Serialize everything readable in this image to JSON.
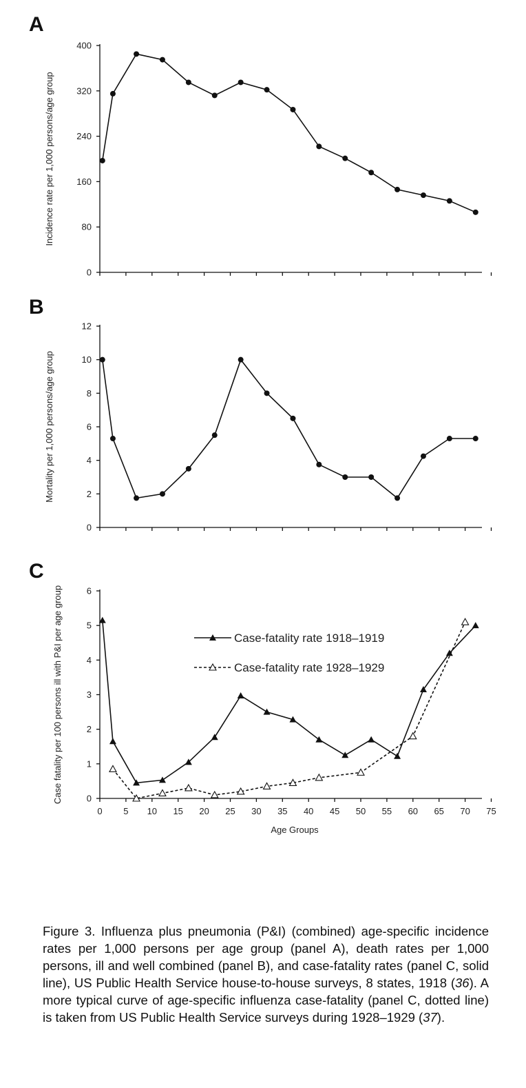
{
  "chart_data": [
    {
      "panel": "A",
      "type": "line",
      "ylabel": "Incidence rate per 1,000 persons/age group",
      "xlabel": "",
      "ylim": [
        0,
        400
      ],
      "yticks": [
        "0",
        "80",
        "160",
        "240",
        "320",
        "400"
      ],
      "xlim": [
        0,
        75
      ],
      "series": [
        {
          "marker": "circle",
          "style": "solid",
          "x": [
            0.5,
            2.5,
            7,
            12,
            17,
            22,
            27,
            32,
            37,
            42,
            47,
            52,
            57,
            62,
            67,
            72
          ],
          "values": [
            197,
            315,
            385,
            375,
            335,
            312,
            335,
            322,
            287,
            222,
            201,
            176,
            146,
            136,
            126,
            106
          ]
        }
      ]
    },
    {
      "panel": "B",
      "type": "line",
      "ylabel": "Mortality per 1,000 persons/age group",
      "xlabel": "",
      "ylim": [
        0,
        12
      ],
      "yticks": [
        "0",
        "2",
        "4",
        "6",
        "8",
        "10",
        "12"
      ],
      "xlim": [
        0,
        75
      ],
      "series": [
        {
          "marker": "circle",
          "style": "solid",
          "x": [
            0.5,
            2.5,
            7,
            12,
            17,
            22,
            27,
            32,
            37,
            42,
            47,
            52,
            57,
            62,
            67,
            72
          ],
          "values": [
            10.0,
            5.3,
            1.75,
            2.0,
            3.5,
            5.5,
            10.0,
            8.0,
            6.5,
            3.75,
            3.0,
            3.0,
            1.75,
            4.25,
            5.3,
            5.3
          ]
        }
      ]
    },
    {
      "panel": "C",
      "type": "line",
      "ylabel": "Case fatality per 100 persons ill with P&I per age group",
      "xlabel": "Age Groups",
      "ylim": [
        0,
        6
      ],
      "yticks": [
        "0",
        "1",
        "2",
        "3",
        "4",
        "5",
        "6"
      ],
      "xlim": [
        0,
        75
      ],
      "xticks": [
        "0",
        "5",
        "10",
        "15",
        "20",
        "25",
        "30",
        "35",
        "40",
        "45",
        "50",
        "55",
        "60",
        "65",
        "70",
        "75"
      ],
      "legend": "top-right",
      "series": [
        {
          "name": "Case-fatality rate 1918–1919",
          "marker": "triangle-filled",
          "style": "solid",
          "x": [
            0.5,
            2.5,
            7,
            12,
            17,
            22,
            27,
            32,
            37,
            42,
            47,
            52,
            57,
            62,
            67,
            72
          ],
          "values": [
            5.15,
            1.65,
            0.45,
            0.53,
            1.05,
            1.77,
            2.97,
            2.5,
            2.28,
            1.7,
            1.25,
            1.7,
            1.22,
            3.15,
            4.2,
            5.0
          ]
        },
        {
          "name": "Case-fatality rate 1928–1929",
          "marker": "triangle-open",
          "style": "dotted",
          "x": [
            2.5,
            7,
            12,
            17,
            22,
            27,
            32,
            37,
            42,
            50,
            60,
            70
          ],
          "values": [
            0.85,
            0.0,
            0.15,
            0.3,
            0.1,
            0.2,
            0.35,
            0.45,
            0.6,
            0.75,
            1.8,
            5.1
          ]
        }
      ]
    }
  ],
  "caption": {
    "p1": "Figure 3. Influenza plus pneumonia (P&I) (combined) age-specific incidence rates per 1,000 persons per age group (panel A), death rates per 1,000 persons, ill and well combined (panel B), and case-fatality rates (panel C, solid line), US Public Health Service house-to-house surveys, 8 states, 1918 (",
    "ref1": "36",
    "p2": "). A more typical curve of age-specific influenza case-fatality (panel C, dotted line) is taken from US Public Health Service surveys during 1928–1929 (",
    "ref2": "37",
    "p3": ")."
  }
}
